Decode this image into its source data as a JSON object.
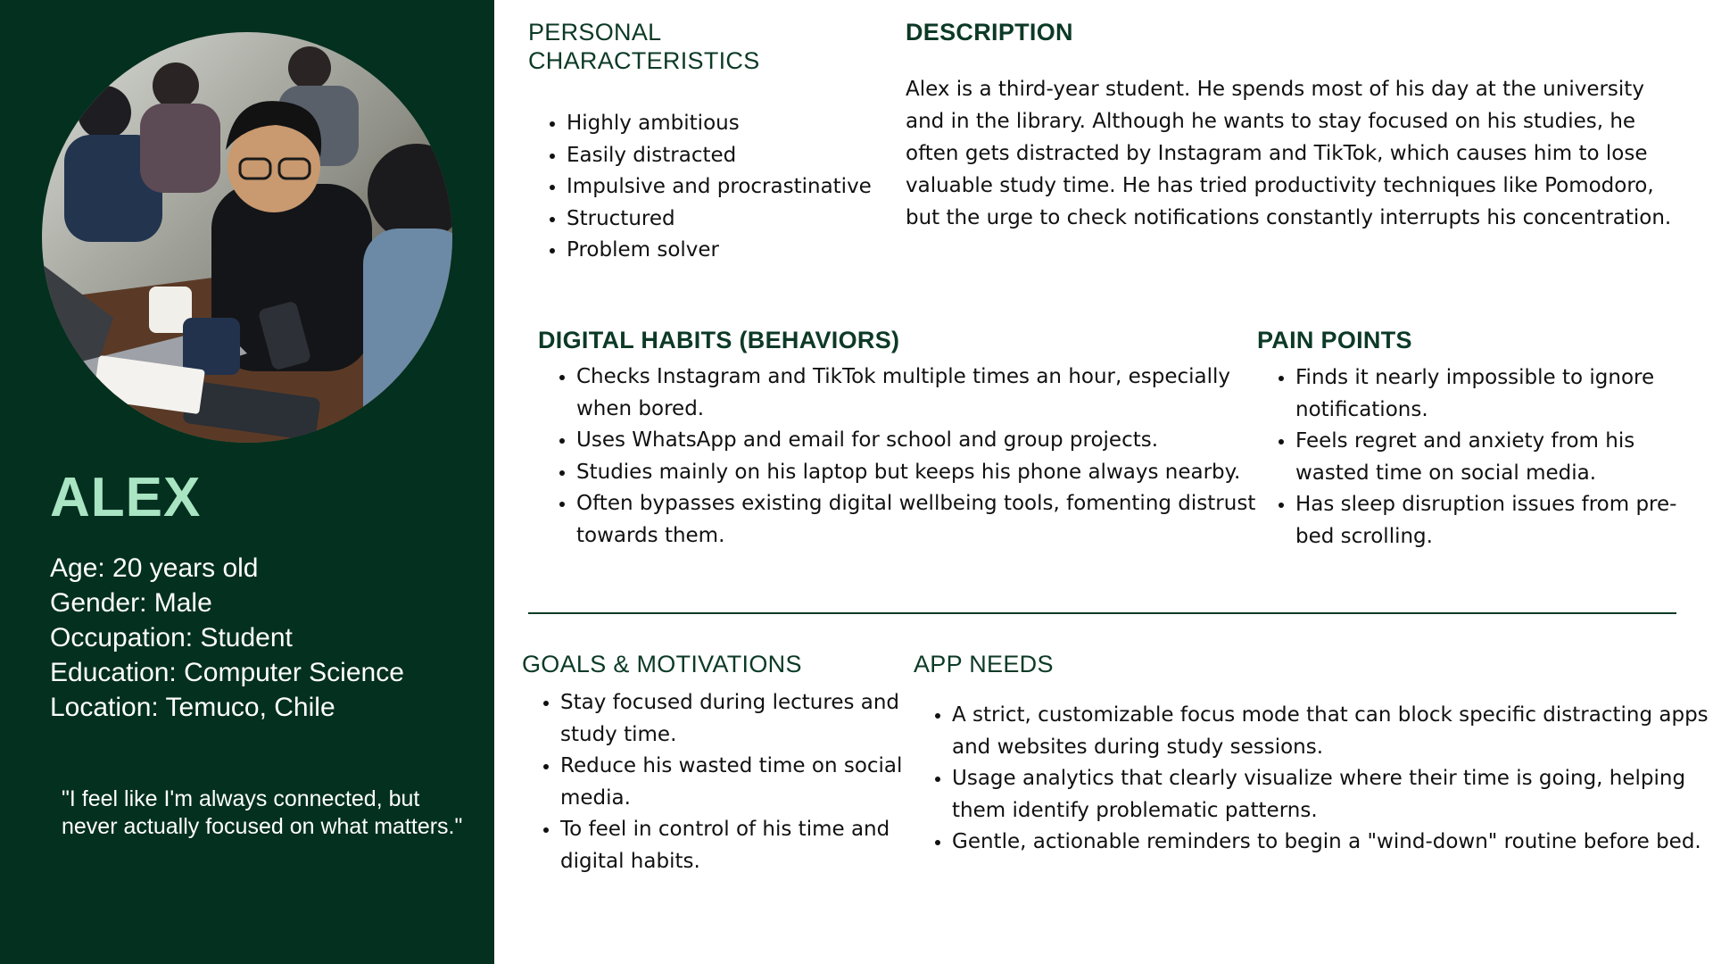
{
  "persona": {
    "name": "ALEX",
    "facts": [
      "Age: 20 years old",
      "Gender: Male",
      "Occupation: Student",
      "Education: Computer Science",
      "Location: Temuco, Chile"
    ],
    "quote": "\"I feel like I'm always connected, but never actually focused on what matters.\""
  },
  "personal": {
    "title_line1": "PERSONAL",
    "title_line2": "CHARACTERISTICS",
    "items": [
      "Highly ambitious",
      "Easily distracted",
      "Impulsive and procrastinative",
      "Structured",
      "Problem solver"
    ]
  },
  "description": {
    "title": "DESCRIPTION",
    "text": "Alex is a third-year student. He spends most of his day at the university and in the library. Although he wants to stay focused on his studies, he often gets distracted by Instagram and TikTok, which causes him to lose valuable study time. He has tried productivity techniques like Pomodoro, but the urge to check notifications constantly interrupts his concentration."
  },
  "habits": {
    "title": "DIGITAL HABITS (BEHAVIORS)",
    "items": [
      "Checks Instagram and TikTok multiple times an hour, especially when bored.",
      "Uses WhatsApp and email for school and group projects.",
      "Studies mainly on his laptop but keeps his phone always nearby.",
      "Often bypasses existing digital wellbeing tools, fomenting distrust towards them."
    ]
  },
  "pain": {
    "title": "PAIN POINTS",
    "items": [
      "Finds it nearly impossible to ignore notifications.",
      "Feels regret and anxiety from his wasted time on social media.",
      "Has sleep disruption issues from pre-bed scrolling."
    ]
  },
  "goals": {
    "title": "GOALS & MOTIVATIONS",
    "items": [
      "Stay focused during lectures and study time.",
      "Reduce his wasted time on social media.",
      "To feel in control of his time and digital habits."
    ]
  },
  "needs": {
    "title": "APP NEEDS",
    "items": [
      "A strict, customizable focus mode that can block specific distracting apps and websites during study sessions.",
      "Usage analytics that clearly visualize where their time is going, helping them identify problematic patterns.",
      "Gentle, actionable reminders to begin a \"wind-down\" routine before bed."
    ]
  },
  "colors": {
    "sidebar": "#03301f",
    "name_accent": "#a9e4c3",
    "heading": "#0c3a26"
  }
}
